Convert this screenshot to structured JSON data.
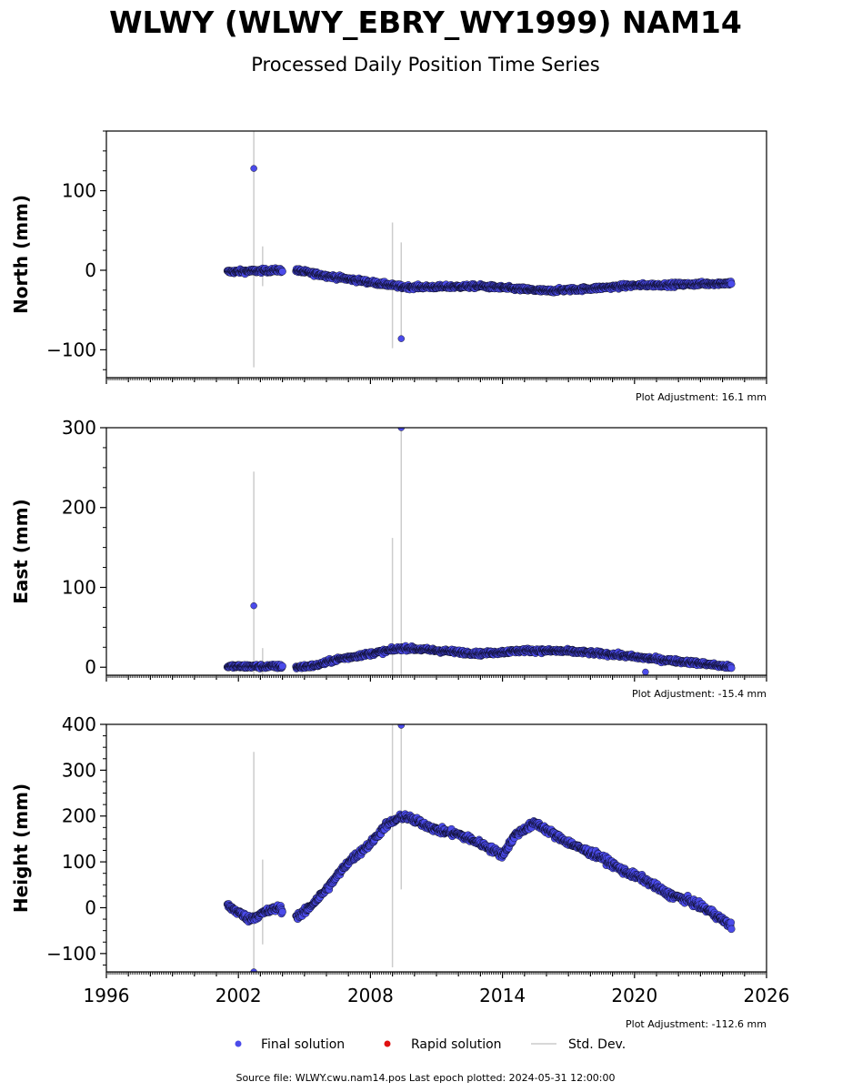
{
  "header": {
    "title": "WLWY (WLWY_EBRY_WY1999) NAM14",
    "subtitle": "Processed Daily Position Time Series"
  },
  "footer": {
    "source": "Source file: WLWY.cwu.nam14.pos  Last epoch plotted: 2024-05-31 12:00:00"
  },
  "colors": {
    "final": "#4b4bea",
    "rapid": "#e01010",
    "stddev": "#cccccc",
    "axis": "#000000"
  },
  "legend": [
    {
      "kind": "final",
      "label": "Final solution"
    },
    {
      "kind": "rapid",
      "label": "Rapid solution"
    },
    {
      "kind": "stddev",
      "label": "Std. Dev."
    }
  ],
  "chart_data": [
    {
      "type": "scatter",
      "ylabel": "North (mm)",
      "xlim": [
        1996,
        2026
      ],
      "ylim": [
        -135,
        175
      ],
      "yticks": [
        -100,
        0,
        100
      ],
      "xticks": [
        1996,
        2002,
        2008,
        2014,
        2020,
        2026
      ],
      "show_x_tick_labels": false,
      "adjustment": "Plot Adjustment: 16.1 mm",
      "trend": [
        [
          2001.5,
          -2
        ],
        [
          2003.8,
          0
        ],
        [
          2004.6,
          0
        ],
        [
          2006.0,
          -7
        ],
        [
          2008.0,
          -15
        ],
        [
          2009.5,
          -21
        ],
        [
          2011.0,
          -21
        ],
        [
          2013.0,
          -20
        ],
        [
          2016.0,
          -26
        ],
        [
          2018.0,
          -23
        ],
        [
          2020.0,
          -19
        ],
        [
          2022.0,
          -18
        ],
        [
          2024.4,
          -16
        ]
      ],
      "gaps": [
        [
          2004.0,
          2004.6
        ]
      ],
      "trend_noise": 2.5,
      "error_bars": [
        [
          2002.7,
          -122,
          175
        ],
        [
          2003.1,
          -20,
          30
        ],
        [
          2009.0,
          -98,
          60
        ],
        [
          2009.4,
          -90,
          35
        ]
      ],
      "outliers": [
        [
          2002.7,
          128
        ],
        [
          2009.4,
          -86
        ]
      ]
    },
    {
      "type": "scatter",
      "ylabel": "East (mm)",
      "xlim": [
        1996,
        2026
      ],
      "ylim": [
        -10,
        300
      ],
      "yticks": [
        0,
        100,
        200,
        300
      ],
      "xticks": [
        1996,
        2002,
        2008,
        2014,
        2020,
        2026
      ],
      "show_x_tick_labels": false,
      "adjustment": "Plot Adjustment: -15.4 mm",
      "trend": [
        [
          2001.5,
          1
        ],
        [
          2003.8,
          1
        ],
        [
          2004.6,
          0
        ],
        [
          2005.5,
          2
        ],
        [
          2006.5,
          10
        ],
        [
          2008.0,
          17
        ],
        [
          2009.5,
          24
        ],
        [
          2011.0,
          21
        ],
        [
          2013.0,
          17
        ],
        [
          2015.0,
          21
        ],
        [
          2017.0,
          20
        ],
        [
          2019.0,
          16
        ],
        [
          2021.0,
          10
        ],
        [
          2023.0,
          5
        ],
        [
          2024.4,
          0
        ]
      ],
      "gaps": [
        [
          2004.0,
          2004.6
        ]
      ],
      "trend_noise": 2.5,
      "error_bars": [
        [
          2002.7,
          -10,
          245
        ],
        [
          2003.1,
          -10,
          24
        ],
        [
          2009.0,
          -10,
          162
        ],
        [
          2009.4,
          -10,
          300
        ]
      ],
      "outliers": [
        [
          2002.7,
          77
        ],
        [
          2009.4,
          300
        ],
        [
          2020.5,
          -6
        ]
      ]
    },
    {
      "type": "scatter",
      "ylabel": "Height (mm)",
      "xlim": [
        1996,
        2026
      ],
      "ylim": [
        -140,
        400
      ],
      "yticks": [
        -100,
        0,
        100,
        200,
        300,
        400
      ],
      "xticks": [
        1996,
        2002,
        2008,
        2014,
        2020,
        2026
      ],
      "show_x_tick_labels": true,
      "adjustment": "Plot Adjustment: -112.6 mm",
      "trend": [
        [
          2001.5,
          5
        ],
        [
          2002.5,
          -25
        ],
        [
          2003.2,
          -10
        ],
        [
          2003.8,
          0
        ],
        [
          2004.6,
          -20
        ],
        [
          2005.0,
          -10
        ],
        [
          2006.0,
          40
        ],
        [
          2007.0,
          100
        ],
        [
          2008.0,
          140
        ],
        [
          2008.7,
          180
        ],
        [
          2009.5,
          200
        ],
        [
          2010.3,
          185
        ],
        [
          2011.0,
          170
        ],
        [
          2012.0,
          160
        ],
        [
          2013.0,
          140
        ],
        [
          2014.0,
          115
        ],
        [
          2014.6,
          160
        ],
        [
          2015.5,
          185
        ],
        [
          2016.5,
          155
        ],
        [
          2017.5,
          130
        ],
        [
          2018.5,
          110
        ],
        [
          2019.5,
          80
        ],
        [
          2020.5,
          60
        ],
        [
          2021.5,
          30
        ],
        [
          2022.5,
          15
        ],
        [
          2023.5,
          -10
        ],
        [
          2024.4,
          -40
        ]
      ],
      "gaps": [
        [
          2004.0,
          2004.6
        ]
      ],
      "trend_noise": 7,
      "error_bars": [
        [
          2002.7,
          -140,
          340
        ],
        [
          2003.1,
          -80,
          105
        ],
        [
          2009.0,
          -130,
          400
        ],
        [
          2009.4,
          40,
          400
        ]
      ],
      "outliers": [
        [
          2002.7,
          -140
        ],
        [
          2009.4,
          398
        ]
      ]
    }
  ]
}
